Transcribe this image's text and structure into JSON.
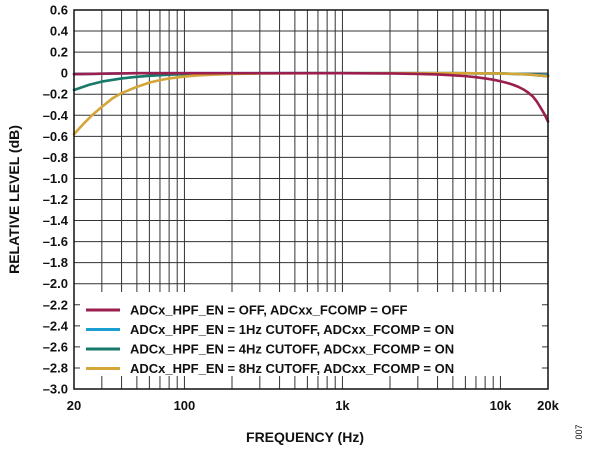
{
  "chart_data": {
    "type": "line",
    "xlabel": "FREQUENCY (Hz)",
    "ylabel": "RELATIVE LEVEL (dB)",
    "xscale": "log",
    "xlim": [
      20,
      20000
    ],
    "ylim": [
      -3.0,
      0.6
    ],
    "grid": true,
    "legend_position": "bottom-left",
    "x_ticks": [
      {
        "value": 20,
        "label": "20"
      },
      {
        "value": 100,
        "label": "100"
      },
      {
        "value": 1000,
        "label": "1k"
      },
      {
        "value": 10000,
        "label": "10k"
      },
      {
        "value": 20000,
        "label": "20k"
      }
    ],
    "y_ticks": [
      {
        "value": 0.6,
        "label": "0.6"
      },
      {
        "value": 0.4,
        "label": "0.4"
      },
      {
        "value": 0.2,
        "label": "0.2"
      },
      {
        "value": 0,
        "label": "0"
      },
      {
        "value": -0.2,
        "label": "–0.2"
      },
      {
        "value": -0.4,
        "label": "–0.4"
      },
      {
        "value": -0.6,
        "label": "–0.6"
      },
      {
        "value": -0.8,
        "label": "–0.8"
      },
      {
        "value": -1.0,
        "label": "–1.0"
      },
      {
        "value": -1.2,
        "label": "–1.2"
      },
      {
        "value": -1.4,
        "label": "–1.4"
      },
      {
        "value": -1.6,
        "label": "–1.6"
      },
      {
        "value": -1.8,
        "label": "–1.8"
      },
      {
        "value": -2.0,
        "label": "–2.0"
      },
      {
        "value": -2.2,
        "label": "–2.2"
      },
      {
        "value": -2.4,
        "label": "–2.4"
      },
      {
        "value": -2.6,
        "label": "–2.6"
      },
      {
        "value": -2.8,
        "label": "–2.8"
      },
      {
        "value": -3.0,
        "label": "–3.0"
      }
    ],
    "series": [
      {
        "name": "ADCx_HPF_EN = OFF, ADCxx_FCOMP = OFF",
        "color": "#9b1f4e",
        "x": [
          20,
          30,
          50,
          100,
          200,
          500,
          1000,
          2000,
          3000,
          4000,
          5000,
          6000,
          7000,
          8000,
          9000,
          10000,
          11000,
          12000,
          13000,
          14000,
          15000,
          16000,
          17000,
          18000,
          19000,
          20000
        ],
        "y": [
          -0.01,
          -0.005,
          0,
          0,
          0,
          0,
          0,
          -0.003,
          -0.007,
          -0.012,
          -0.02,
          -0.028,
          -0.038,
          -0.05,
          -0.062,
          -0.077,
          -0.092,
          -0.11,
          -0.13,
          -0.155,
          -0.185,
          -0.22,
          -0.27,
          -0.33,
          -0.39,
          -0.46
        ]
      },
      {
        "name": "ADCx_HPF_EN = 1Hz CUTOFF, ADCxx_FCOMP = ON",
        "color": "#1a9ed4",
        "x": [
          20,
          30,
          50,
          100,
          200,
          500,
          1000,
          2000,
          5000,
          10000,
          15000,
          20000
        ],
        "y": [
          -0.01,
          -0.005,
          0,
          0,
          0,
          0,
          0,
          0,
          0,
          -0.003,
          -0.01,
          -0.02
        ]
      },
      {
        "name": "ADCx_HPF_EN = 4Hz CUTOFF, ADCxx_FCOMP = ON",
        "color": "#16796a",
        "x": [
          20,
          25,
          30,
          40,
          50,
          60,
          80,
          100,
          150,
          200,
          500,
          1000,
          2000,
          5000,
          10000,
          15000,
          20000
        ],
        "y": [
          -0.16,
          -0.11,
          -0.08,
          -0.05,
          -0.035,
          -0.025,
          -0.014,
          -0.009,
          -0.004,
          -0.002,
          0,
          0,
          0,
          0,
          -0.003,
          -0.012,
          -0.03
        ]
      },
      {
        "name": "ADCx_HPF_EN = 8Hz CUTOFF, ADCxx_FCOMP = ON",
        "color": "#d4a637",
        "x": [
          20,
          23,
          26,
          30,
          35,
          40,
          50,
          60,
          70,
          80,
          100,
          120,
          150,
          200,
          300,
          500,
          1000,
          2000,
          5000,
          10000,
          15000,
          20000
        ],
        "y": [
          -0.58,
          -0.48,
          -0.4,
          -0.32,
          -0.24,
          -0.19,
          -0.13,
          -0.09,
          -0.066,
          -0.05,
          -0.032,
          -0.022,
          -0.014,
          -0.008,
          -0.003,
          -0.001,
          0,
          0,
          0,
          -0.003,
          -0.012,
          -0.03
        ]
      }
    ]
  },
  "figure_id": "007"
}
